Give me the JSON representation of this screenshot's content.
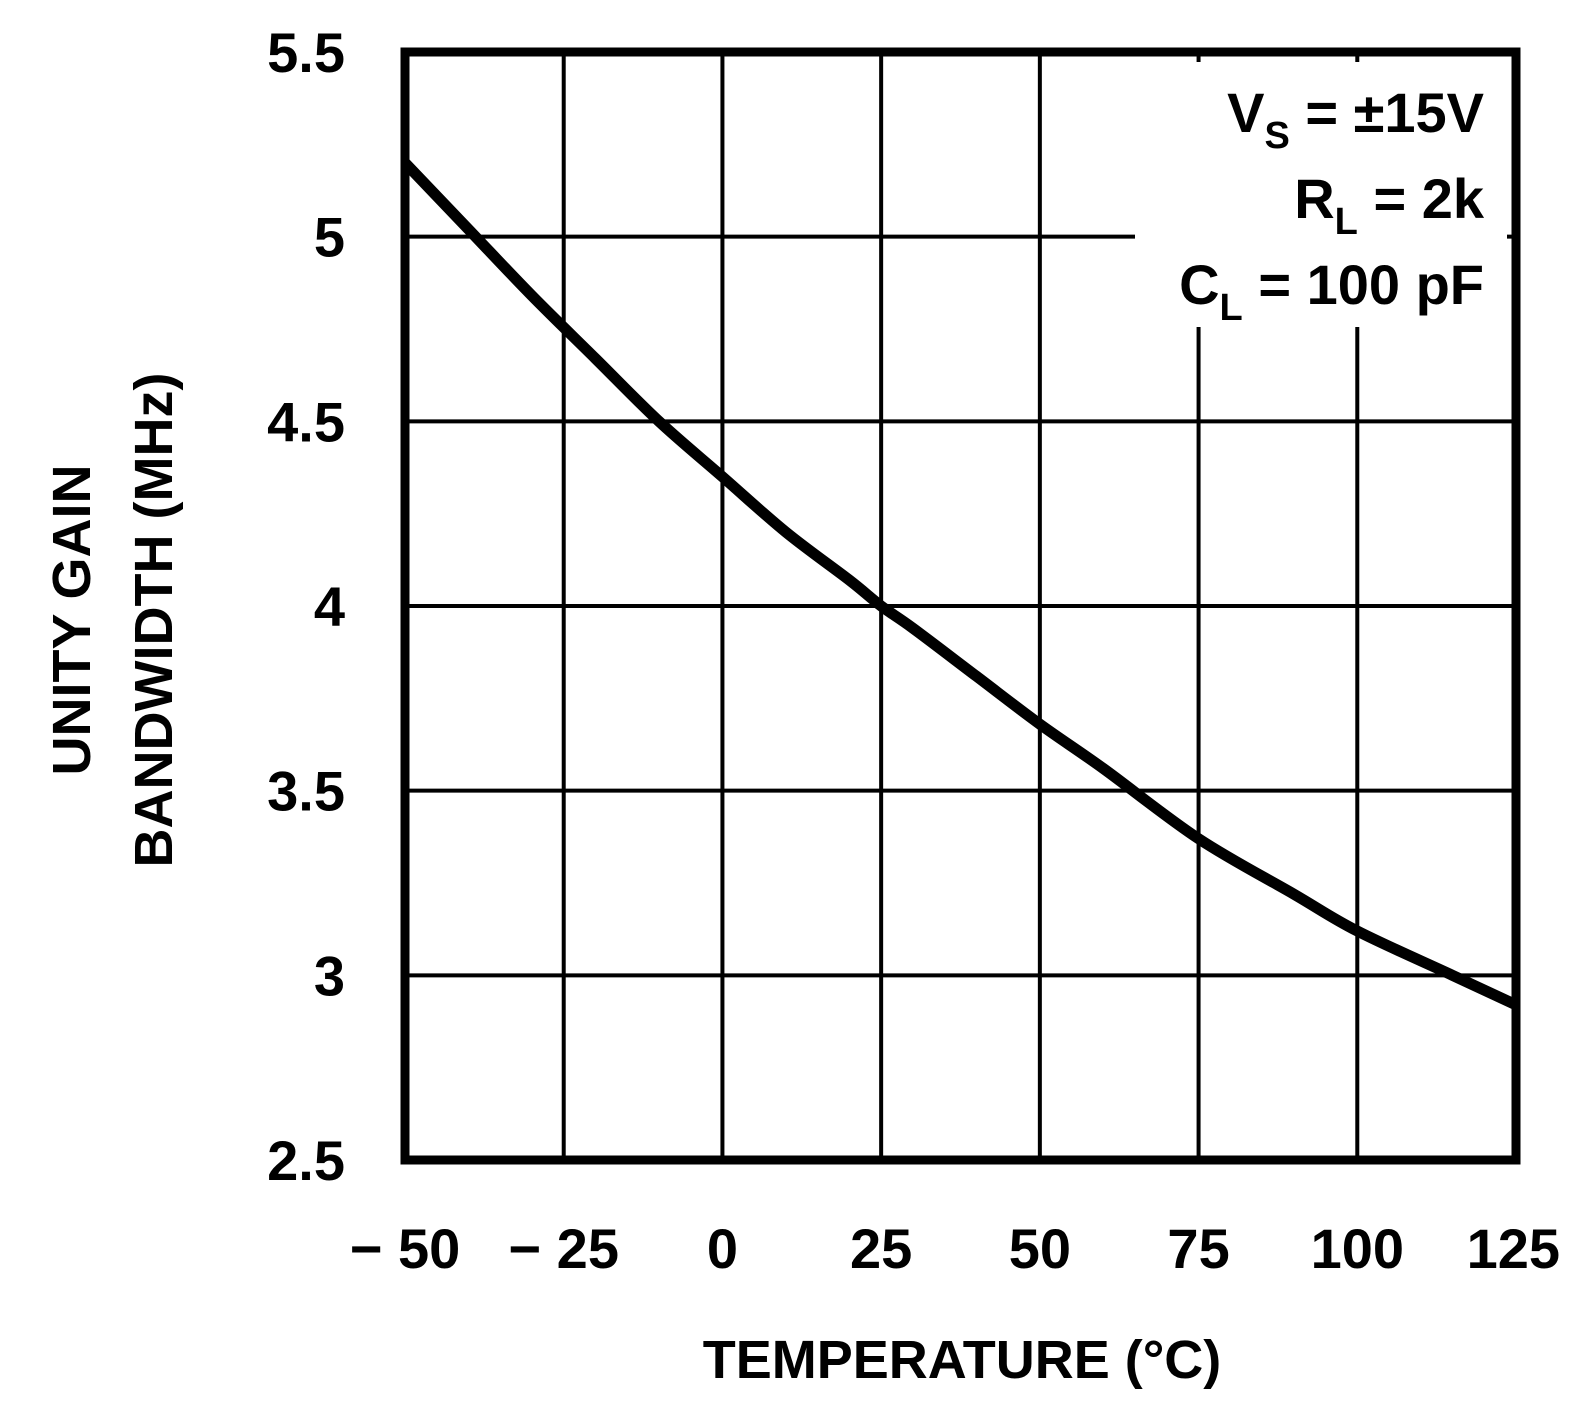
{
  "chart_data": {
    "type": "line",
    "title": "",
    "xlabel": "TEMPERATURE (°C)",
    "ylabel_line1": "UNITY GAIN",
    "ylabel_line2": "BANDWIDTH (MHz)",
    "xlim": [
      -50,
      125
    ],
    "ylim": [
      2.5,
      5.5
    ],
    "x_ticks": [
      -50,
      -25,
      0,
      25,
      50,
      75,
      100,
      125
    ],
    "x_tick_labels": [
      "− 50",
      "− 25",
      "0",
      "25",
      "50",
      "75",
      "100",
      "125"
    ],
    "y_ticks": [
      2.5,
      3,
      3.5,
      4,
      4.5,
      5,
      5.5
    ],
    "y_tick_labels": [
      "2.5",
      "3",
      "3.5",
      "4",
      "4.5",
      "5",
      "5.5"
    ],
    "grid": true,
    "conditions": [
      {
        "main": "V",
        "sub": "S",
        "rest": " = ±15V"
      },
      {
        "main": "R",
        "sub": "L",
        "rest": " = 2k"
      },
      {
        "main": "C",
        "sub": "L",
        "rest": " = 100 pF"
      }
    ],
    "series": [
      {
        "name": "Unity Gain Bandwidth",
        "x": [
          -50,
          -40,
          -30,
          -20,
          -10,
          0,
          10,
          20,
          25,
          30,
          40,
          50,
          60,
          75,
          90,
          100,
          115,
          125
        ],
        "y": [
          5.2,
          5.02,
          4.84,
          4.67,
          4.5,
          4.35,
          4.2,
          4.07,
          4.0,
          3.94,
          3.81,
          3.68,
          3.56,
          3.37,
          3.22,
          3.12,
          3.0,
          2.92
        ]
      }
    ]
  }
}
